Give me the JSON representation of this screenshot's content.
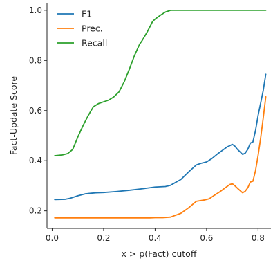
{
  "chart_data": {
    "type": "line",
    "title": "",
    "xlabel": "x > p(Fact) cutoff",
    "ylabel": "Fact-Update Score",
    "xlim": [
      -0.02,
      0.85
    ],
    "ylim": [
      0.13,
      1.03
    ],
    "xticks": [
      0.0,
      0.2,
      0.4,
      0.6,
      0.8
    ],
    "xtick_labels": [
      "0.0",
      "0.2",
      "0.4",
      "0.6",
      "0.8"
    ],
    "yticks": [
      0.2,
      0.4,
      0.6,
      0.8,
      1.0
    ],
    "ytick_labels": [
      "0.2",
      "0.4",
      "0.6",
      "0.8",
      "1.0"
    ],
    "grid": false,
    "legend_position": "top-left",
    "series": [
      {
        "name": "F1",
        "color": "#1f77b4",
        "x": [
          0.01,
          0.05,
          0.07,
          0.1,
          0.13,
          0.17,
          0.2,
          0.25,
          0.3,
          0.35,
          0.4,
          0.44,
          0.46,
          0.5,
          0.53,
          0.56,
          0.58,
          0.6,
          0.62,
          0.64,
          0.66,
          0.68,
          0.7,
          0.71,
          0.72,
          0.74,
          0.75,
          0.76,
          0.77,
          0.78,
          0.79,
          0.8,
          0.81,
          0.82,
          0.83
        ],
        "values": [
          0.245,
          0.246,
          0.25,
          0.26,
          0.268,
          0.272,
          0.273,
          0.277,
          0.282,
          0.288,
          0.295,
          0.297,
          0.302,
          0.325,
          0.355,
          0.383,
          0.39,
          0.395,
          0.408,
          0.425,
          0.44,
          0.455,
          0.465,
          0.458,
          0.445,
          0.425,
          0.43,
          0.445,
          0.47,
          0.475,
          0.52,
          0.58,
          0.63,
          0.68,
          0.745
        ]
      },
      {
        "name": "Prec.",
        "color": "#ff7f0e",
        "x": [
          0.01,
          0.05,
          0.1,
          0.2,
          0.3,
          0.38,
          0.4,
          0.43,
          0.46,
          0.5,
          0.53,
          0.56,
          0.59,
          0.61,
          0.63,
          0.65,
          0.67,
          0.69,
          0.7,
          0.71,
          0.72,
          0.74,
          0.75,
          0.76,
          0.77,
          0.78,
          0.79,
          0.8,
          0.81,
          0.82,
          0.83
        ],
        "values": [
          0.172,
          0.172,
          0.172,
          0.172,
          0.172,
          0.172,
          0.173,
          0.173,
          0.175,
          0.19,
          0.212,
          0.238,
          0.243,
          0.248,
          0.262,
          0.275,
          0.29,
          0.305,
          0.308,
          0.3,
          0.29,
          0.272,
          0.278,
          0.292,
          0.315,
          0.318,
          0.36,
          0.42,
          0.49,
          0.57,
          0.655
        ]
      },
      {
        "name": "Recall",
        "color": "#2ca02c",
        "x": [
          0.01,
          0.04,
          0.06,
          0.08,
          0.1,
          0.12,
          0.14,
          0.16,
          0.18,
          0.2,
          0.22,
          0.24,
          0.26,
          0.28,
          0.3,
          0.32,
          0.34,
          0.35,
          0.37,
          0.39,
          0.4,
          0.42,
          0.44,
          0.46,
          0.5,
          0.6,
          0.7,
          0.83
        ],
        "values": [
          0.42,
          0.423,
          0.428,
          0.445,
          0.495,
          0.54,
          0.58,
          0.615,
          0.628,
          0.635,
          0.642,
          0.655,
          0.675,
          0.715,
          0.765,
          0.82,
          0.865,
          0.88,
          0.915,
          0.955,
          0.965,
          0.98,
          0.993,
          1.0,
          1.0,
          1.0,
          1.0,
          1.0
        ]
      }
    ]
  }
}
